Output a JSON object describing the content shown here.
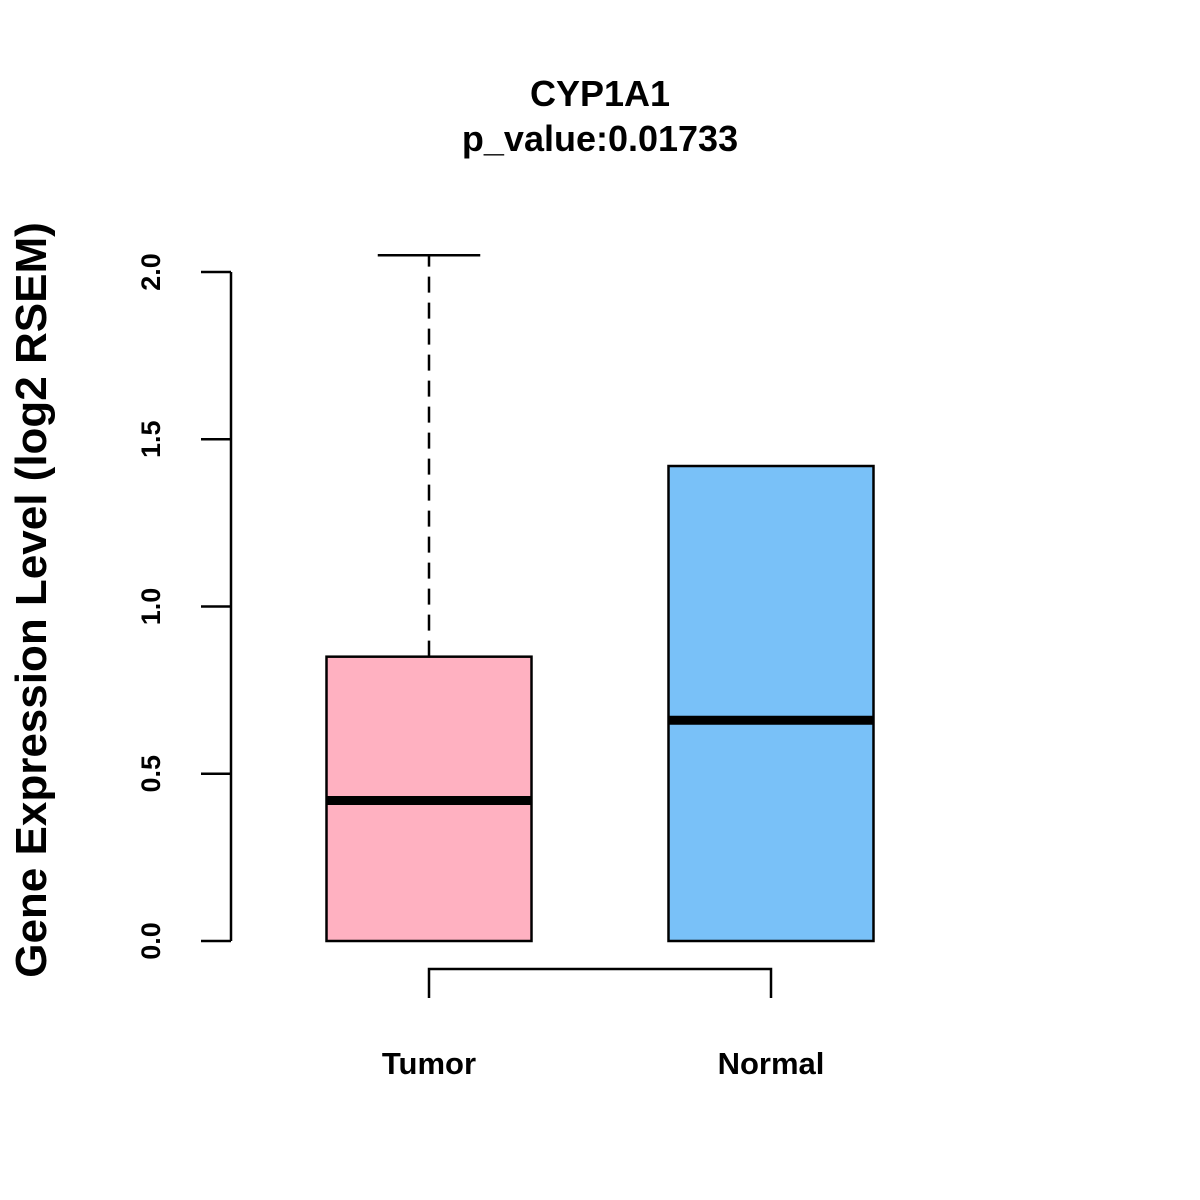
{
  "chart_data": {
    "type": "box",
    "title": "CYP1A1",
    "subtitle": "p_value:0.01733",
    "xlabel": "",
    "ylabel": "Gene Expression Level (log2 RSEM)",
    "ylim": [
      0,
      2
    ],
    "yticks": [
      0.0,
      0.5,
      1.0,
      1.5,
      2.0
    ],
    "ytick_labels": [
      "0.0",
      "0.5",
      "1.0",
      "1.5",
      "2.0"
    ],
    "categories": [
      "Tumor",
      "Normal"
    ],
    "series": [
      {
        "name": "Tumor",
        "q1": 0.0,
        "median": 0.42,
        "q3": 0.85,
        "whisker_low": 0.0,
        "whisker_high": 2.05,
        "color": "#FFB1C1"
      },
      {
        "name": "Normal",
        "q1": 0.0,
        "median": 0.66,
        "q3": 1.42,
        "whisker_low": 0.0,
        "whisker_high": 1.42,
        "color": "#79C1F8"
      }
    ],
    "comparison_bracket": [
      "Tumor",
      "Normal"
    ],
    "grid": false,
    "legend": "none"
  }
}
